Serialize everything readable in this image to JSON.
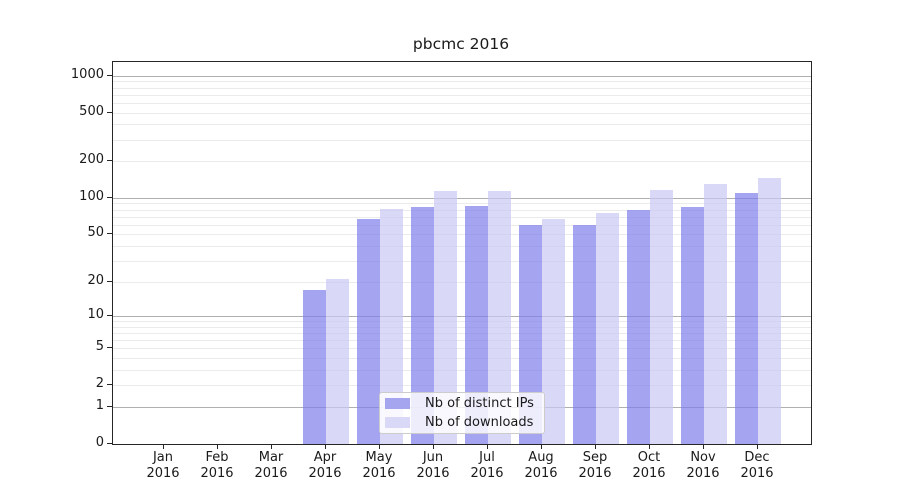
{
  "figure": {
    "title": "pbcmc 2016"
  },
  "chart_data": {
    "type": "bar",
    "title": "pbcmc 2016",
    "categories": [
      "Jan",
      "Feb",
      "Mar",
      "Apr",
      "May",
      "Jun",
      "Jul",
      "Aug",
      "Sep",
      "Oct",
      "Nov",
      "Dec"
    ],
    "category_year": "2016",
    "series": [
      {
        "name": "Nb of distinct IPs",
        "color": "rgba(125,125,234,0.7)",
        "legend_color": "#a4a4ef",
        "values": [
          0,
          0,
          0,
          17,
          67,
          84,
          86,
          60,
          60,
          80,
          84,
          109
        ]
      },
      {
        "name": "Nb of downloads",
        "color": "rgba(201,201,244,0.7)",
        "legend_color": "#d9d9f7",
        "values": [
          0,
          0,
          0,
          21,
          81,
          115,
          115,
          67,
          75,
          116,
          129,
          146
        ]
      }
    ],
    "xlabel": "",
    "ylabel": "",
    "yscale": "log1p",
    "ylim": [
      0,
      1290
    ],
    "yticks": [
      0,
      1,
      2,
      5,
      10,
      20,
      50,
      100,
      200,
      500,
      1000
    ],
    "grid": {
      "major_lines": [
        1,
        10,
        100,
        1000
      ],
      "minor_subs": [
        2,
        3,
        4,
        5,
        6,
        7,
        8,
        9
      ]
    },
    "legend_position": "lower center"
  },
  "colors": {
    "major_grid": "#b0b0b0",
    "minor_grid": "#ebebeb",
    "spine": "#262626",
    "text": "#1a1a1a",
    "legend_border": "#cccccc",
    "legend_background": "rgba(255,255,255,0.8)"
  }
}
